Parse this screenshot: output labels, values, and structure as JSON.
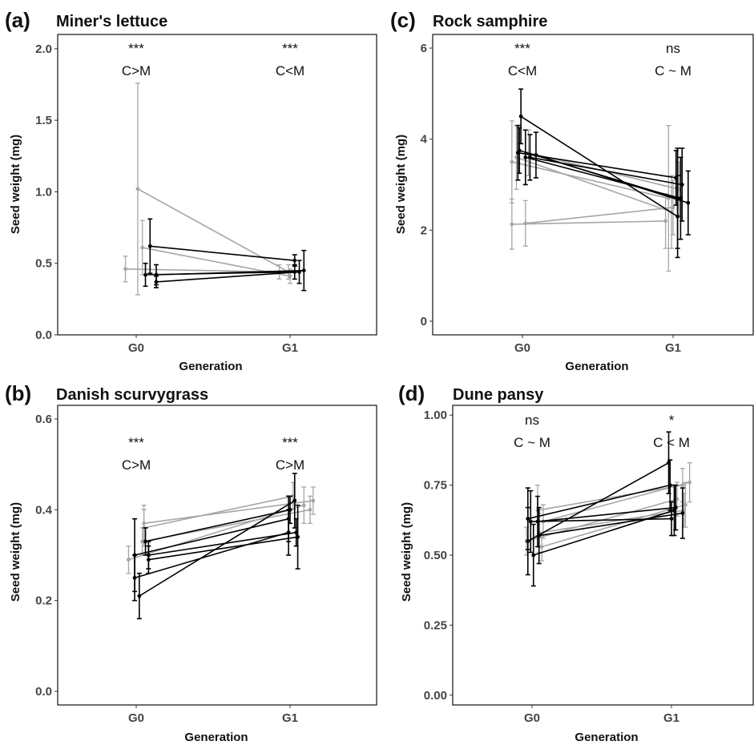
{
  "colors": {
    "dark": "#000000",
    "light": "#a6a6a6"
  },
  "xlabel": "Generation",
  "ylabel": "Seed weight (mg)",
  "chart_data": [
    {
      "type": "line",
      "panel": "(a)",
      "title": "Miner's lettuce",
      "categories": [
        "G0",
        "G1"
      ],
      "ylim": [
        0,
        2.1
      ],
      "yticks": [
        0.0,
        0.5,
        1.0,
        1.5,
        2.0
      ],
      "ytick_labels": [
        "0.0",
        "0.5",
        "1.0",
        "1.5",
        "2.0"
      ],
      "annotations": [
        {
          "category": "G0",
          "stars": "***",
          "comparison": "C>M"
        },
        {
          "category": "G1",
          "stars": "***",
          "comparison": "C<M"
        }
      ],
      "series": [
        {
          "group": "light",
          "offset": [
            -0.07,
            -0.07
          ],
          "values": [
            0.46,
            0.44
          ],
          "err": [
            0.09,
            0.05
          ]
        },
        {
          "group": "light",
          "offset": [
            0.01,
            -0.01
          ],
          "values": [
            1.02,
            0.44
          ],
          "err": [
            0.74,
            0.05
          ]
        },
        {
          "group": "light",
          "offset": [
            0.04,
            0.0
          ],
          "values": [
            0.61,
            0.41
          ],
          "err": [
            0.19,
            0.05
          ]
        },
        {
          "group": "dark",
          "offset": [
            0.06,
            0.03
          ],
          "values": [
            0.42,
            0.44
          ],
          "err": [
            0.08,
            0.05
          ]
        },
        {
          "group": "dark",
          "offset": [
            0.09,
            0.03
          ],
          "values": [
            0.62,
            0.52
          ],
          "err": [
            0.19,
            0.04
          ]
        },
        {
          "group": "dark",
          "offset": [
            0.13,
            0.06
          ],
          "values": [
            0.37,
            0.44
          ],
          "err": [
            0.04,
            0.08
          ]
        },
        {
          "group": "dark",
          "offset": [
            0.13,
            0.09
          ],
          "values": [
            0.42,
            0.45
          ],
          "err": [
            0.07,
            0.14
          ]
        }
      ]
    },
    {
      "type": "line",
      "panel": "(b)",
      "title": "Danish scurvygrass",
      "categories": [
        "G0",
        "G1"
      ],
      "ylim": [
        -0.03,
        0.63
      ],
      "yticks": [
        0.0,
        0.2,
        0.4,
        0.6
      ],
      "ytick_labels": [
        "0.0",
        "0.2",
        "0.4",
        "0.6"
      ],
      "annotations": [
        {
          "category": "G0",
          "stars": "***",
          "comparison": "C>M"
        },
        {
          "category": "G1",
          "stars": "***",
          "comparison": "C>M"
        }
      ],
      "series": [
        {
          "group": "light",
          "offset": [
            -0.05,
            0.09
          ],
          "values": [
            0.29,
            0.41
          ],
          "err": [
            0.03,
            0.04
          ]
        },
        {
          "group": "light",
          "offset": [
            0.04,
            0.13
          ],
          "values": [
            0.33,
            0.4
          ],
          "err": [
            0.03,
            0.03
          ]
        },
        {
          "group": "light",
          "offset": [
            0.05,
            0.15
          ],
          "values": [
            0.37,
            0.42
          ],
          "err": [
            0.04,
            0.03
          ]
        },
        {
          "group": "light",
          "offset": [
            0.05,
            0.02
          ],
          "values": [
            0.36,
            0.43
          ],
          "err": [
            0.04,
            0.03
          ]
        },
        {
          "group": "dark",
          "offset": [
            -0.01,
            -0.01
          ],
          "values": [
            0.3,
            0.38
          ],
          "err": [
            0.08,
            0.05
          ]
        },
        {
          "group": "dark",
          "offset": [
            -0.01,
            -0.01
          ],
          "values": [
            0.25,
            0.35
          ],
          "err": [
            0.05,
            0.05
          ]
        },
        {
          "group": "dark",
          "offset": [
            0.02,
            0.03
          ],
          "values": [
            0.21,
            0.42
          ],
          "err": [
            0.05,
            0.06
          ]
        },
        {
          "group": "dark",
          "offset": [
            0.06,
            0.0
          ],
          "values": [
            0.33,
            0.4
          ],
          "err": [
            0.03,
            0.03
          ]
        },
        {
          "group": "dark",
          "offset": [
            0.08,
            0.04
          ],
          "values": [
            0.3,
            0.35
          ],
          "err": [
            0.03,
            0.03
          ]
        },
        {
          "group": "dark",
          "offset": [
            0.08,
            0.05
          ],
          "values": [
            0.29,
            0.34
          ],
          "err": [
            0.03,
            0.07
          ]
        }
      ]
    },
    {
      "type": "line",
      "panel": "(c)",
      "title": "Rock samphire",
      "categories": [
        "G0",
        "G1"
      ],
      "ylim": [
        -0.3,
        6.3
      ],
      "yticks": [
        0,
        2,
        4,
        6
      ],
      "ytick_labels": [
        "0",
        "2",
        "4",
        "6"
      ],
      "annotations": [
        {
          "category": "G0",
          "stars": "***",
          "comparison": "C<M"
        },
        {
          "category": "G1",
          "stars": "ns",
          "comparison": "C ~ M"
        }
      ],
      "series": [
        {
          "group": "light",
          "offset": [
            -0.07,
            -0.05
          ],
          "values": [
            2.13,
            2.2
          ],
          "err": [
            0.55,
            0.6
          ]
        },
        {
          "group": "light",
          "offset": [
            -0.07,
            -0.03
          ],
          "values": [
            3.5,
            2.7
          ],
          "err": [
            0.9,
            1.6
          ]
        },
        {
          "group": "light",
          "offset": [
            -0.04,
            -0.01
          ],
          "values": [
            3.6,
            2.4
          ],
          "err": [
            0.7,
            0.8
          ]
        },
        {
          "group": "light",
          "offset": [
            0.02,
            0.0
          ],
          "values": [
            2.15,
            2.5
          ],
          "err": [
            0.5,
            0.6
          ]
        },
        {
          "group": "light",
          "offset": [
            0.04,
            0.04
          ],
          "values": [
            3.7,
            2.9
          ],
          "err": [
            0.5,
            0.6
          ]
        },
        {
          "group": "dark",
          "offset": [
            -0.03,
            0.02
          ],
          "values": [
            3.7,
            3.15
          ],
          "err": [
            0.6,
            0.6
          ]
        },
        {
          "group": "dark",
          "offset": [
            -0.02,
            0.03
          ],
          "values": [
            3.75,
            2.7
          ],
          "err": [
            0.5,
            1.1
          ]
        },
        {
          "group": "dark",
          "offset": [
            -0.01,
            0.03
          ],
          "values": [
            4.5,
            2.3
          ],
          "err": [
            0.6,
            0.9
          ]
        },
        {
          "group": "dark",
          "offset": [
            0.02,
            0.05
          ],
          "values": [
            3.6,
            2.7
          ],
          "err": [
            0.6,
            0.9
          ]
        },
        {
          "group": "dark",
          "offset": [
            0.05,
            0.06
          ],
          "values": [
            3.6,
            3.0
          ],
          "err": [
            0.5,
            0.8
          ]
        },
        {
          "group": "dark",
          "offset": [
            0.09,
            0.1
          ],
          "values": [
            3.65,
            2.6
          ],
          "err": [
            0.5,
            0.7
          ]
        }
      ]
    },
    {
      "type": "line",
      "panel": "(d)",
      "title": "Dune pansy",
      "categories": [
        "G0",
        "G1"
      ],
      "ylim": [
        -0.035,
        1.035
      ],
      "yticks": [
        0.0,
        0.25,
        0.5,
        0.75,
        1.0
      ],
      "ytick_labels": [
        "0.00",
        "0.25",
        "0.50",
        "0.75",
        "1.00"
      ],
      "annotations": [
        {
          "category": "G0",
          "stars": "ns",
          "comparison": "C ~ M"
        },
        {
          "category": "G1",
          "stars": "*",
          "comparison": "C < M"
        }
      ],
      "series": [
        {
          "group": "light",
          "offset": [
            -0.04,
            0.04
          ],
          "values": [
            0.55,
            0.7
          ],
          "err": [
            0.05,
            0.06
          ]
        },
        {
          "group": "light",
          "offset": [
            0.04,
            0.08
          ],
          "values": [
            0.66,
            0.75
          ],
          "err": [
            0.09,
            0.06
          ]
        },
        {
          "group": "light",
          "offset": [
            0.05,
            0.09
          ],
          "values": [
            0.58,
            0.66
          ],
          "err": [
            0.07,
            0.06
          ]
        },
        {
          "group": "light",
          "offset": [
            0.07,
            0.1
          ],
          "values": [
            0.53,
            0.68
          ],
          "err": [
            0.05,
            0.08
          ]
        },
        {
          "group": "light",
          "offset": [
            0.08,
            0.13
          ],
          "values": [
            0.62,
            0.76
          ],
          "err": [
            0.06,
            0.07
          ]
        },
        {
          "group": "dark",
          "offset": [
            -0.03,
            -0.02
          ],
          "values": [
            0.55,
            0.83
          ],
          "err": [
            0.12,
            0.11
          ]
        },
        {
          "group": "dark",
          "offset": [
            -0.03,
            -0.01
          ],
          "values": [
            0.63,
            0.75
          ],
          "err": [
            0.11,
            0.09
          ]
        },
        {
          "group": "dark",
          "offset": [
            -0.01,
            0.0
          ],
          "values": [
            0.62,
            0.63
          ],
          "err": [
            0.11,
            0.06
          ]
        },
        {
          "group": "dark",
          "offset": [
            0.01,
            0.02
          ],
          "values": [
            0.5,
            0.66
          ],
          "err": [
            0.11,
            0.09
          ]
        },
        {
          "group": "dark",
          "offset": [
            0.04,
            0.03
          ],
          "values": [
            0.62,
            0.67
          ],
          "err": [
            0.09,
            0.08
          ]
        },
        {
          "group": "dark",
          "offset": [
            0.05,
            0.08
          ],
          "values": [
            0.57,
            0.65
          ],
          "err": [
            0.1,
            0.09
          ]
        }
      ]
    }
  ]
}
